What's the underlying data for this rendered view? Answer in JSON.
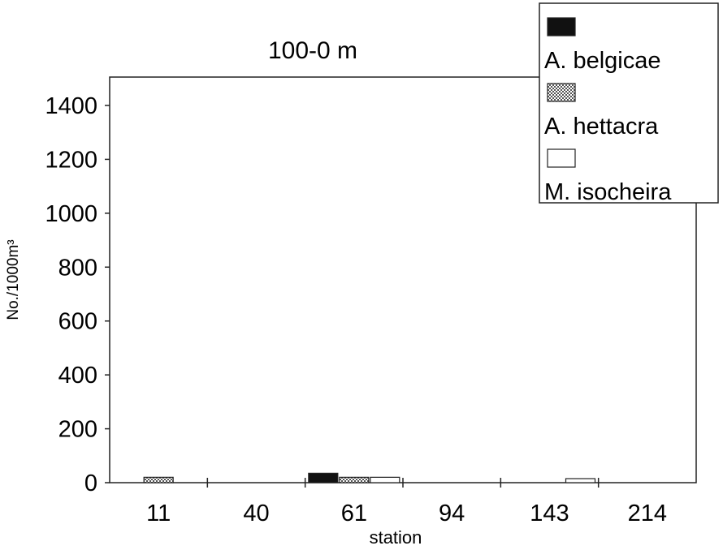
{
  "chart_data": {
    "type": "bar",
    "title": "100-0 m",
    "xlabel": "station",
    "ylabel": "No./1000m³",
    "ylim": [
      0,
      1500
    ],
    "yticks": [
      "0",
      "200",
      "400",
      "600",
      "800",
      "1000",
      "1200",
      "1400"
    ],
    "ytick_values": [
      0,
      200,
      400,
      600,
      800,
      1000,
      1200,
      1400
    ],
    "categories": [
      "11",
      "40",
      "61",
      "94",
      "143",
      "214"
    ],
    "series": [
      {
        "name": "A. belgicae",
        "values": [
          0,
          0,
          35,
          0,
          0,
          0
        ]
      },
      {
        "name": "A. hettacra",
        "values": [
          20,
          0,
          20,
          0,
          0,
          0
        ]
      },
      {
        "name": "M. isocheira",
        "values": [
          0,
          0,
          20,
          0,
          15,
          0
        ]
      }
    ],
    "legend_position": "top-right",
    "grid": false
  },
  "colors": {
    "A. belgicae": "#111111",
    "A. hettacra": "#d9d9d9",
    "M. isocheira": "#ffffff"
  }
}
